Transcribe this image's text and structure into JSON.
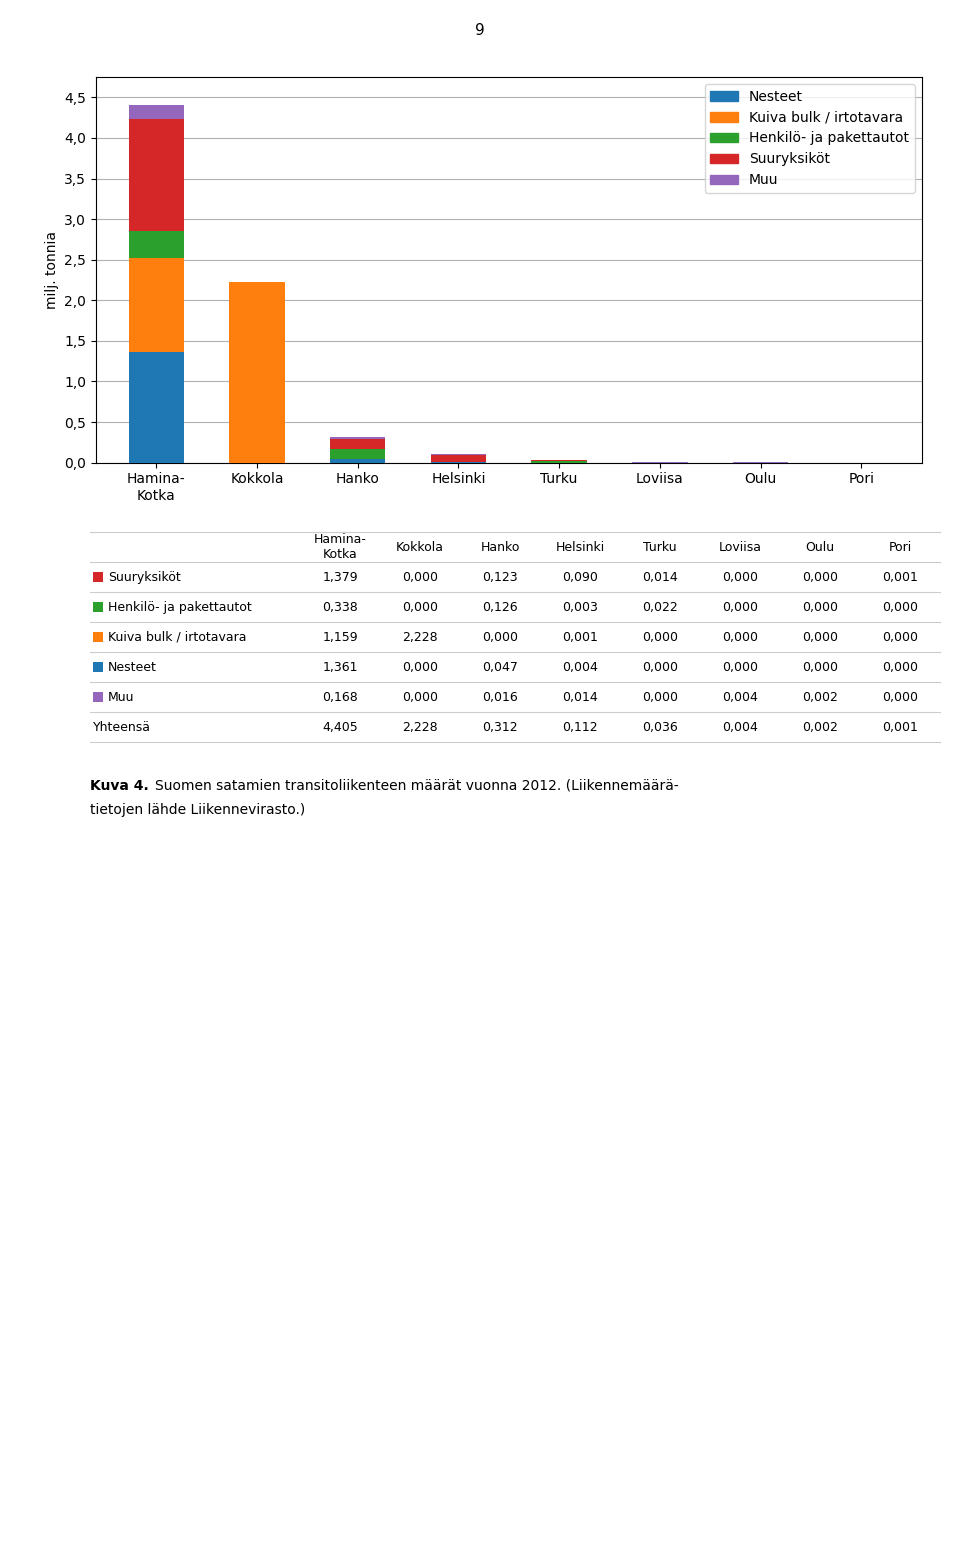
{
  "chart_data": {
    "type": "bar",
    "stacked": true,
    "categories": [
      "Hamina-\nKotka",
      "Kokkola",
      "Hanko",
      "Helsinki",
      "Turku",
      "Loviisa",
      "Oulu",
      "Pori"
    ],
    "series": [
      {
        "name": "Nesteet",
        "color": "#1f77b4",
        "values": [
          1.361,
          0.0,
          0.047,
          0.004,
          0.0,
          0.0,
          0.0,
          0.0
        ]
      },
      {
        "name": "Kuiva bulk / irtotavara",
        "color": "#ff7f0e",
        "values": [
          1.159,
          2.228,
          0.0,
          0.001,
          0.0,
          0.0,
          0.0,
          0.0
        ]
      },
      {
        "name": "Henkilö- ja pakettautot",
        "color": "#2ca02c",
        "values": [
          0.338,
          0.0,
          0.126,
          0.003,
          0.022,
          0.0,
          0.0,
          0.0
        ]
      },
      {
        "name": "Suuryksiköt",
        "color": "#d62728",
        "values": [
          1.379,
          0.0,
          0.123,
          0.09,
          0.014,
          0.0,
          0.0,
          0.001
        ]
      },
      {
        "name": "Muu",
        "color": "#9467bd",
        "values": [
          0.168,
          0.0,
          0.016,
          0.014,
          0.0,
          0.004,
          0.002,
          0.0
        ]
      }
    ],
    "ylabel": "milj. tonnia",
    "ylim": [
      0.0,
      4.75
    ],
    "yticks": [
      {
        "value": 0.0,
        "label": "0,0"
      },
      {
        "value": 0.5,
        "label": "0,5"
      },
      {
        "value": 1.0,
        "label": "1,0"
      },
      {
        "value": 1.5,
        "label": "1,5"
      },
      {
        "value": 2.0,
        "label": "2,0"
      },
      {
        "value": 2.5,
        "label": "2,5"
      },
      {
        "value": 3.0,
        "label": "3,0"
      },
      {
        "value": 3.5,
        "label": "3,5"
      },
      {
        "value": 4.0,
        "label": "4,0"
      },
      {
        "value": 4.5,
        "label": "4,5"
      }
    ],
    "grid": true,
    "legend": "upper right",
    "table": {
      "columns": [
        "Hamina-\nKotka",
        "Kokkola",
        "Hanko",
        "Helsinki",
        "Turku",
        "Loviisa",
        "Oulu",
        "Pori"
      ],
      "rows": [
        {
          "label": "Suuryksiköt",
          "color": "#d62728",
          "values": [
            "1,379",
            "0,000",
            "0,123",
            "0,090",
            "0,014",
            "0,000",
            "0,000",
            "0,001"
          ]
        },
        {
          "label": "Henkilö- ja pakettautot",
          "color": "#2ca02c",
          "values": [
            "0,338",
            "0,000",
            "0,126",
            "0,003",
            "0,022",
            "0,000",
            "0,000",
            "0,000"
          ]
        },
        {
          "label": "Kuiva bulk / irtotavara",
          "color": "#ff7f0e",
          "values": [
            "1,159",
            "2,228",
            "0,000",
            "0,001",
            "0,000",
            "0,000",
            "0,000",
            "0,000"
          ]
        },
        {
          "label": "Nesteet",
          "color": "#1f77b4",
          "values": [
            "1,361",
            "0,000",
            "0,047",
            "0,004",
            "0,000",
            "0,000",
            "0,000",
            "0,000"
          ]
        },
        {
          "label": "Muu",
          "color": "#9467bd",
          "values": [
            "0,168",
            "0,000",
            "0,016",
            "0,014",
            "0,000",
            "0,004",
            "0,002",
            "0,000"
          ]
        },
        {
          "label": "Yhteensä",
          "values": [
            "4,405",
            "2,228",
            "0,312",
            "0,112",
            "0,036",
            "0,004",
            "0,002",
            "0,001"
          ]
        }
      ]
    },
    "caption_label": "Kuva 4.",
    "caption": [
      "Suomen satamien transitoliikenteen määrät vuonna 2012. (Liikennemäärä-",
      "tietojen lähde Liikennevirasto.)"
    ],
    "page_number": "9"
  }
}
